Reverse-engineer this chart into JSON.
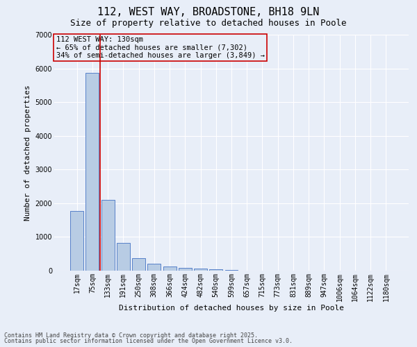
{
  "title1": "112, WEST WAY, BROADSTONE, BH18 9LN",
  "title2": "Size of property relative to detached houses in Poole",
  "xlabel": "Distribution of detached houses by size in Poole",
  "ylabel": "Number of detached properties",
  "categories": [
    "17sqm",
    "75sqm",
    "133sqm",
    "191sqm",
    "250sqm",
    "308sqm",
    "366sqm",
    "424sqm",
    "482sqm",
    "540sqm",
    "599sqm",
    "657sqm",
    "715sqm",
    "773sqm",
    "831sqm",
    "889sqm",
    "947sqm",
    "1006sqm",
    "1064sqm",
    "1122sqm",
    "1180sqm"
  ],
  "values": [
    1780,
    5860,
    2090,
    820,
    380,
    215,
    120,
    90,
    65,
    50,
    30,
    0,
    0,
    0,
    0,
    0,
    0,
    0,
    0,
    0,
    0
  ],
  "bar_color": "#b8cce4",
  "bar_edge_color": "#4472c4",
  "bg_color": "#e8eef8",
  "grid_color": "#ffffff",
  "property_line_x": 1.5,
  "annotation_line1": "112 WEST WAY: 130sqm",
  "annotation_line2": "← 65% of detached houses are smaller (7,302)",
  "annotation_line3": "34% of semi-detached houses are larger (3,849) →",
  "annotation_box_color": "#cc0000",
  "property_line_color": "#cc0000",
  "ylim": [
    0,
    7000
  ],
  "yticks": [
    0,
    1000,
    2000,
    3000,
    4000,
    5000,
    6000,
    7000
  ],
  "footer1": "Contains HM Land Registry data © Crown copyright and database right 2025.",
  "footer2": "Contains public sector information licensed under the Open Government Licence v3.0.",
  "title_fontsize": 11,
  "subtitle_fontsize": 9,
  "axis_label_fontsize": 8,
  "tick_fontsize": 7,
  "annotation_fontsize": 7.5,
  "footer_fontsize": 6
}
